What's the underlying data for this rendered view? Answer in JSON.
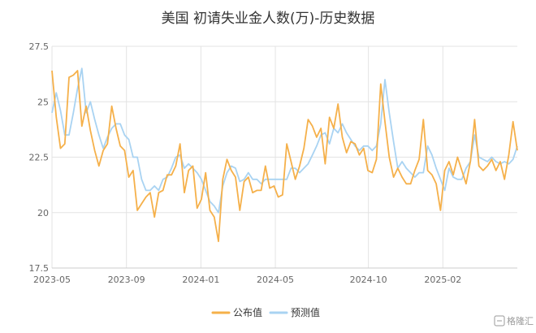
{
  "chart_data": {
    "type": "line",
    "title": "美国 初请失业金人数(万)-历史数据",
    "xlabel": "",
    "ylabel": "",
    "ylim": [
      17.5,
      27.5
    ],
    "yticks": [
      "17.5",
      "20",
      "22.5",
      "25",
      "27.5"
    ],
    "xticks": [
      "2023-05",
      "2023-09",
      "2024-01",
      "2024-05",
      "2024-10",
      "2025-02"
    ],
    "x_start": "2023-05",
    "grid": "on",
    "legend_position": "bottom-center",
    "series": [
      {
        "name": "公布值",
        "color": "#f5b04a",
        "values": [
          26.4,
          24.3,
          22.9,
          23.1,
          26.1,
          26.2,
          26.4,
          23.9,
          24.8,
          23.7,
          22.8,
          22.1,
          22.8,
          23.1,
          24.8,
          23.8,
          23.0,
          22.8,
          21.6,
          21.9,
          20.1,
          20.4,
          20.7,
          20.9,
          19.8,
          20.9,
          21.0,
          21.7,
          21.7,
          22.1,
          23.1,
          20.9,
          21.9,
          22.1,
          20.2,
          20.6,
          21.8,
          20.1,
          19.8,
          18.7,
          21.5,
          22.4,
          21.9,
          21.6,
          20.1,
          21.4,
          21.6,
          20.9,
          21.0,
          21.0,
          22.1,
          21.1,
          21.2,
          20.7,
          20.8,
          23.1,
          22.3,
          21.5,
          22.1,
          22.9,
          24.2,
          23.9,
          23.4,
          23.8,
          22.2,
          24.3,
          23.8,
          24.9,
          23.4,
          22.7,
          23.2,
          23.1,
          22.6,
          22.9,
          21.9,
          21.8,
          22.4,
          25.8,
          24.1,
          22.5,
          21.6,
          22.0,
          21.6,
          21.3,
          21.3,
          21.9,
          22.4,
          24.2,
          21.9,
          21.7,
          21.3,
          20.1,
          21.9,
          22.3,
          21.7,
          22.5,
          21.9,
          21.3,
          22.3,
          24.2,
          22.1,
          21.9,
          22.1,
          22.4,
          21.9,
          22.3,
          21.5,
          22.6,
          24.1,
          22.8
        ]
      },
      {
        "name": "预测值",
        "color": "#a9d3f2",
        "values": [
          24.5,
          25.4,
          24.6,
          23.5,
          23.5,
          24.5,
          25.6,
          26.5,
          24.5,
          25.0,
          24.2,
          23.5,
          22.9,
          23.4,
          23.8,
          24.0,
          24.0,
          23.5,
          23.3,
          22.5,
          22.5,
          21.5,
          21.0,
          21.0,
          21.2,
          21.0,
          21.5,
          21.6,
          22.0,
          22.5,
          22.6,
          22.0,
          22.2,
          22.0,
          21.8,
          21.5,
          21.0,
          20.5,
          20.3,
          20.0,
          21.2,
          21.8,
          22.1,
          22.0,
          21.4,
          21.5,
          21.8,
          21.5,
          21.5,
          21.3,
          21.5,
          21.5,
          21.5,
          21.5,
          21.5,
          21.5,
          22.0,
          22.0,
          21.8,
          22.0,
          22.2,
          22.6,
          23.0,
          23.5,
          23.6,
          23.1,
          23.8,
          23.6,
          24.0,
          23.6,
          23.3,
          23.0,
          22.8,
          23.0,
          23.0,
          22.8,
          23.0,
          24.0,
          26.0,
          24.5,
          23.2,
          22.0,
          22.3,
          22.0,
          21.8,
          21.6,
          21.8,
          21.8,
          23.0,
          22.6,
          22.0,
          21.5,
          21.0,
          22.0,
          21.6,
          21.5,
          21.5,
          22.0,
          22.3,
          23.5,
          22.5,
          22.4,
          22.3,
          22.5,
          22.3,
          22.2,
          22.3,
          22.2,
          22.4,
          23.0
        ]
      }
    ]
  },
  "watermark": "格隆汇"
}
